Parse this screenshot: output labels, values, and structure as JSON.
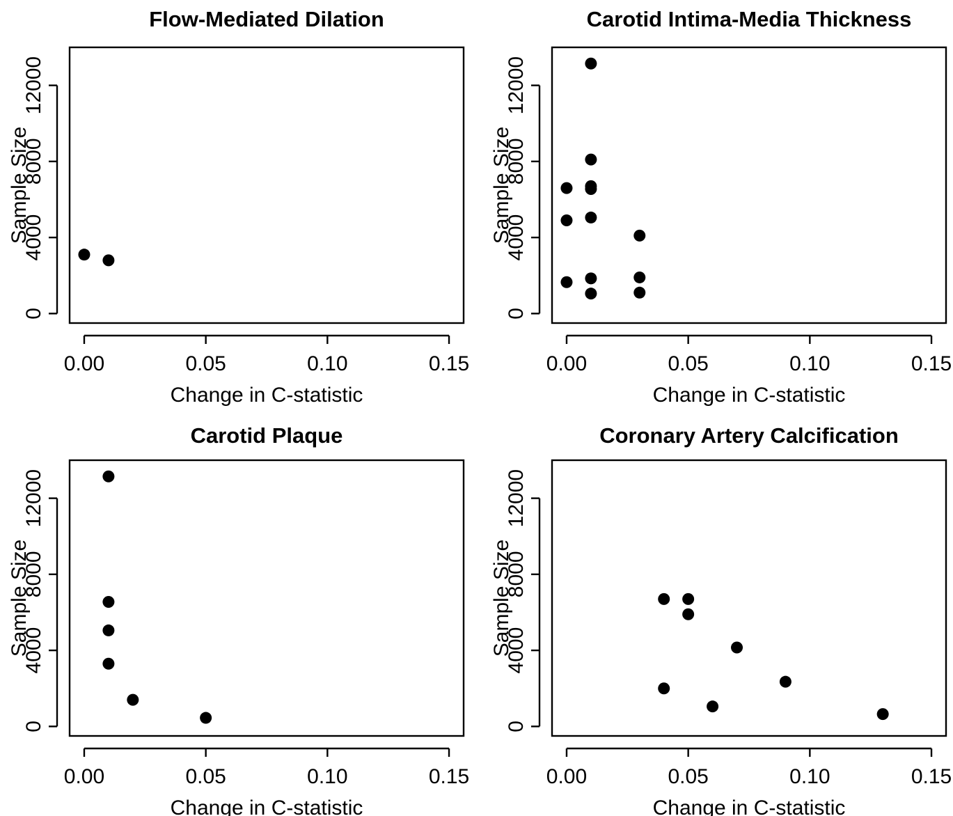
{
  "colors": {
    "background": "#ffffff",
    "foreground": "#000000",
    "marker": "#000000"
  },
  "chart_data": [
    {
      "type": "scatter",
      "title": "Flow-Mediated Dilation",
      "xlabel": "Change in C-statistic",
      "ylabel": "Sample Size",
      "xlim": [
        0,
        0.15
      ],
      "ylim": [
        0,
        13500
      ],
      "x_ticks": [
        "0.00",
        "0.05",
        "0.10",
        "0.15"
      ],
      "y_ticks": [
        "0",
        "4000",
        "8000",
        "12000"
      ],
      "grid": false,
      "legend": "none",
      "points": [
        {
          "x": 0.0,
          "y": 3100
        },
        {
          "x": 0.01,
          "y": 2800
        }
      ]
    },
    {
      "type": "scatter",
      "title": "Carotid Intima-Media Thickness",
      "xlabel": "Change in C-statistic",
      "ylabel": "Sample Size",
      "xlim": [
        0,
        0.15
      ],
      "ylim": [
        0,
        13500
      ],
      "x_ticks": [
        "0.00",
        "0.05",
        "0.10",
        "0.15"
      ],
      "y_ticks": [
        "0",
        "4000",
        "8000",
        "12000"
      ],
      "grid": false,
      "legend": "none",
      "points": [
        {
          "x": 0.0,
          "y": 6600
        },
        {
          "x": 0.0,
          "y": 4900
        },
        {
          "x": 0.0,
          "y": 1650
        },
        {
          "x": 0.01,
          "y": 13150
        },
        {
          "x": 0.01,
          "y": 8100
        },
        {
          "x": 0.01,
          "y": 6700
        },
        {
          "x": 0.01,
          "y": 6550
        },
        {
          "x": 0.01,
          "y": 5050
        },
        {
          "x": 0.01,
          "y": 1850
        },
        {
          "x": 0.01,
          "y": 1050
        },
        {
          "x": 0.03,
          "y": 4100
        },
        {
          "x": 0.03,
          "y": 1900
        },
        {
          "x": 0.03,
          "y": 1100
        }
      ]
    },
    {
      "type": "scatter",
      "title": "Carotid Plaque",
      "xlabel": "Change in C-statistic",
      "ylabel": "Sample Size",
      "xlim": [
        0,
        0.15
      ],
      "ylim": [
        0,
        13500
      ],
      "x_ticks": [
        "0.00",
        "0.05",
        "0.10",
        "0.15"
      ],
      "y_ticks": [
        "0",
        "4000",
        "8000",
        "12000"
      ],
      "grid": false,
      "legend": "none",
      "points": [
        {
          "x": 0.01,
          "y": 13150
        },
        {
          "x": 0.01,
          "y": 6550
        },
        {
          "x": 0.01,
          "y": 5050
        },
        {
          "x": 0.01,
          "y": 3300
        },
        {
          "x": 0.02,
          "y": 1400
        },
        {
          "x": 0.05,
          "y": 450
        }
      ]
    },
    {
      "type": "scatter",
      "title": "Coronary Artery Calcification",
      "xlabel": "Change in C-statistic",
      "ylabel": "Sample Size",
      "xlim": [
        0,
        0.15
      ],
      "ylim": [
        0,
        13500
      ],
      "x_ticks": [
        "0.00",
        "0.05",
        "0.10",
        "0.15"
      ],
      "y_ticks": [
        "0",
        "4000",
        "8000",
        "12000"
      ],
      "grid": false,
      "legend": "none",
      "points": [
        {
          "x": 0.04,
          "y": 6700
        },
        {
          "x": 0.05,
          "y": 6700
        },
        {
          "x": 0.05,
          "y": 5900
        },
        {
          "x": 0.07,
          "y": 4150
        },
        {
          "x": 0.04,
          "y": 2000
        },
        {
          "x": 0.09,
          "y": 2350
        },
        {
          "x": 0.06,
          "y": 1050
        },
        {
          "x": 0.13,
          "y": 650
        }
      ]
    }
  ]
}
